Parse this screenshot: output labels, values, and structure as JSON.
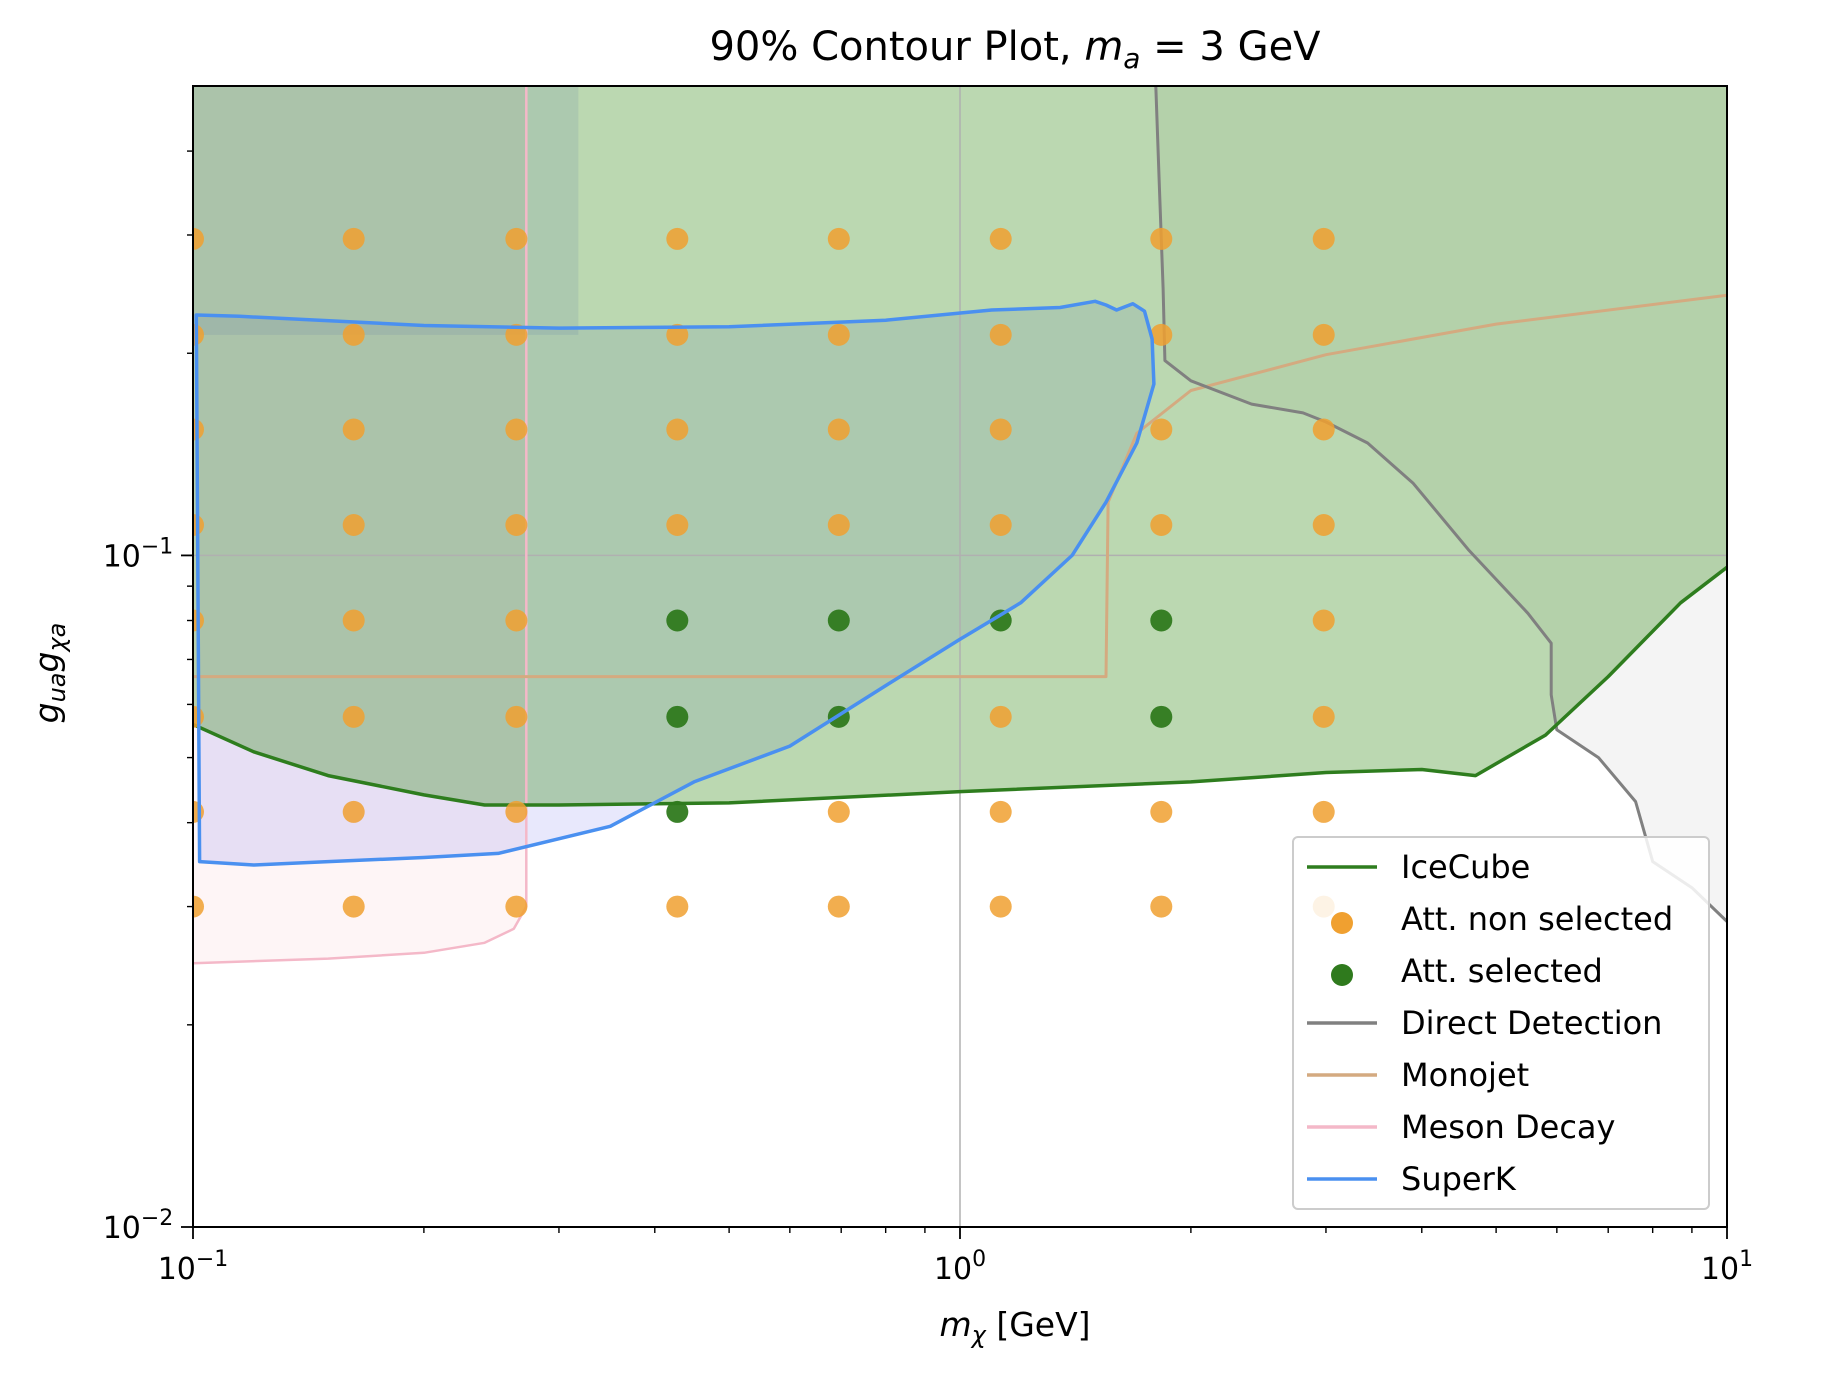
{
  "chart_data": {
    "type": "scatter",
    "title": "90% Contour Plot, m_a = 3 GeV",
    "title_parts": {
      "prefix": "90% Contour Plot, ",
      "var": "m",
      "sub": "a",
      "suffix": " = 3 GeV"
    },
    "xlabel": "m_χ [GeV]",
    "xlabel_parts": {
      "var": "m",
      "sub": "χ",
      "suffix": " [GeV]"
    },
    "ylabel": "g_ua g_χa",
    "ylabel_parts": {
      "v1": "g",
      "s1": "ua",
      "v2": "g",
      "s2": "χa"
    },
    "xscale": "log",
    "yscale": "log",
    "xlim": [
      0.1,
      10
    ],
    "ylim": [
      0.01,
      0.5
    ],
    "grid": "major only",
    "legend_position": "lower right",
    "xticks": [
      {
        "value": 0.1,
        "base": "10",
        "exp": "−1"
      },
      {
        "value": 1,
        "base": "10",
        "exp": "0"
      },
      {
        "value": 10,
        "base": "10",
        "exp": "1"
      }
    ],
    "yticks": [
      {
        "value": 0.01,
        "base": "10",
        "exp": "−2"
      },
      {
        "value": 0.1,
        "base": "10",
        "exp": "−1"
      }
    ],
    "colors": {
      "icecube": "#2e7d1e",
      "icecube_fill": "#3d8f20",
      "attenuation_non_selected": "#f0a030",
      "attenuation_selected": "#2f7a1d",
      "direct_detection": "#808080",
      "monojet": "#d4aa80",
      "meson_decay": "#f4b8c8",
      "superk": "#4a90f0",
      "superk_fill": "#8080f0",
      "grid": "#b0b0b0"
    },
    "x_grid_points": [
      0.1,
      0.162,
      0.264,
      0.428,
      0.695,
      1.13,
      1.83,
      2.98
    ],
    "y_grid_points": [
      0.03,
      0.0415,
      0.0575,
      0.08,
      0.111,
      0.154,
      0.213,
      0.296
    ],
    "series": [
      {
        "name": "IceCube",
        "kind": "line_filled_above",
        "points": [
          [
            0.1,
            0.056
          ],
          [
            0.12,
            0.051
          ],
          [
            0.15,
            0.047
          ],
          [
            0.2,
            0.044
          ],
          [
            0.24,
            0.0425
          ],
          [
            0.3,
            0.0425
          ],
          [
            0.5,
            0.0428
          ],
          [
            1.0,
            0.0445
          ],
          [
            2.0,
            0.046
          ],
          [
            3.0,
            0.0475
          ],
          [
            4.0,
            0.048
          ],
          [
            4.7,
            0.047
          ],
          [
            5.8,
            0.054
          ],
          [
            7.0,
            0.066
          ],
          [
            8.7,
            0.085
          ],
          [
            10.0,
            0.096
          ]
        ]
      },
      {
        "name": "Direct Detection",
        "kind": "line_filled_right",
        "points": [
          [
            1.8,
            0.5
          ],
          [
            1.82,
            0.35
          ],
          [
            1.84,
            0.25
          ],
          [
            1.85,
            0.195
          ],
          [
            2.0,
            0.182
          ],
          [
            2.4,
            0.168
          ],
          [
            2.8,
            0.163
          ],
          [
            3.0,
            0.158
          ],
          [
            3.4,
            0.147
          ],
          [
            3.9,
            0.128
          ],
          [
            4.6,
            0.102
          ],
          [
            5.5,
            0.082
          ],
          [
            5.9,
            0.074
          ],
          [
            5.9,
            0.062
          ],
          [
            6.0,
            0.055
          ],
          [
            6.8,
            0.05
          ],
          [
            7.6,
            0.043
          ],
          [
            8.0,
            0.035
          ],
          [
            9.0,
            0.032
          ],
          [
            10.0,
            0.0285
          ]
        ]
      },
      {
        "name": "Monojet",
        "kind": "line",
        "points": [
          [
            0.1,
            0.066
          ],
          [
            1.55,
            0.066
          ],
          [
            1.56,
            0.12
          ],
          [
            1.7,
            0.152
          ],
          [
            2.0,
            0.176
          ],
          [
            3.0,
            0.199
          ],
          [
            5.0,
            0.221
          ],
          [
            10.0,
            0.244
          ]
        ]
      },
      {
        "name": "Meson Decay",
        "kind": "line_filled_left",
        "points": [
          [
            0.1,
            0.0247
          ],
          [
            0.15,
            0.0251
          ],
          [
            0.2,
            0.0256
          ],
          [
            0.24,
            0.0265
          ],
          [
            0.262,
            0.0278
          ],
          [
            0.272,
            0.03
          ],
          [
            0.272,
            0.05
          ],
          [
            0.272,
            0.2
          ],
          [
            0.272,
            0.5
          ]
        ]
      },
      {
        "name": "SuperK",
        "kind": "closed_region",
        "points": [
          [
            0.101,
            0.228
          ],
          [
            0.115,
            0.227
          ],
          [
            0.2,
            0.22
          ],
          [
            0.3,
            0.218
          ],
          [
            0.5,
            0.219
          ],
          [
            0.8,
            0.224
          ],
          [
            1.1,
            0.232
          ],
          [
            1.35,
            0.234
          ],
          [
            1.5,
            0.239
          ],
          [
            1.55,
            0.236
          ],
          [
            1.6,
            0.232
          ],
          [
            1.68,
            0.237
          ],
          [
            1.74,
            0.231
          ],
          [
            1.78,
            0.21
          ],
          [
            1.79,
            0.18
          ],
          [
            1.7,
            0.147
          ],
          [
            1.55,
            0.12
          ],
          [
            1.4,
            0.1
          ],
          [
            1.2,
            0.085
          ],
          [
            1.0,
            0.075
          ],
          [
            0.8,
            0.064
          ],
          [
            0.6,
            0.052
          ],
          [
            0.45,
            0.046
          ],
          [
            0.35,
            0.0395
          ],
          [
            0.25,
            0.036
          ],
          [
            0.2,
            0.0355
          ],
          [
            0.15,
            0.035
          ],
          [
            0.12,
            0.0346
          ],
          [
            0.102,
            0.035
          ]
        ]
      },
      {
        "name": "SuperK_extension",
        "kind": "band",
        "x_range": [
          0.1,
          0.318
        ],
        "y_top": 0.5,
        "y_bottom": 0.213
      },
      {
        "name": "Att. selected",
        "kind": "scatter",
        "points": [
          [
            0.428,
            0.0415
          ],
          [
            0.428,
            0.0575
          ],
          [
            0.695,
            0.0575
          ],
          [
            1.83,
            0.0575
          ],
          [
            0.428,
            0.08
          ],
          [
            0.695,
            0.08
          ],
          [
            1.13,
            0.08
          ],
          [
            1.83,
            0.08
          ]
        ]
      },
      {
        "name": "Att. non selected",
        "kind": "scatter",
        "points": "all remaining grid points"
      }
    ],
    "legend": [
      {
        "label": "IceCube",
        "type": "line",
        "color": "#2e7d1e"
      },
      {
        "label": "Att. non selected",
        "type": "dot",
        "color": "#f0a030"
      },
      {
        "label": "Att. selected",
        "type": "dot",
        "color": "#2f7a1d"
      },
      {
        "label": "Direct Detection",
        "type": "line",
        "color": "#808080"
      },
      {
        "label": "Monojet",
        "type": "line",
        "color": "#d4aa80"
      },
      {
        "label": "Meson Decay",
        "type": "line",
        "color": "#f4b8c8"
      },
      {
        "label": "SuperK",
        "type": "line",
        "color": "#4a90f0"
      }
    ]
  }
}
